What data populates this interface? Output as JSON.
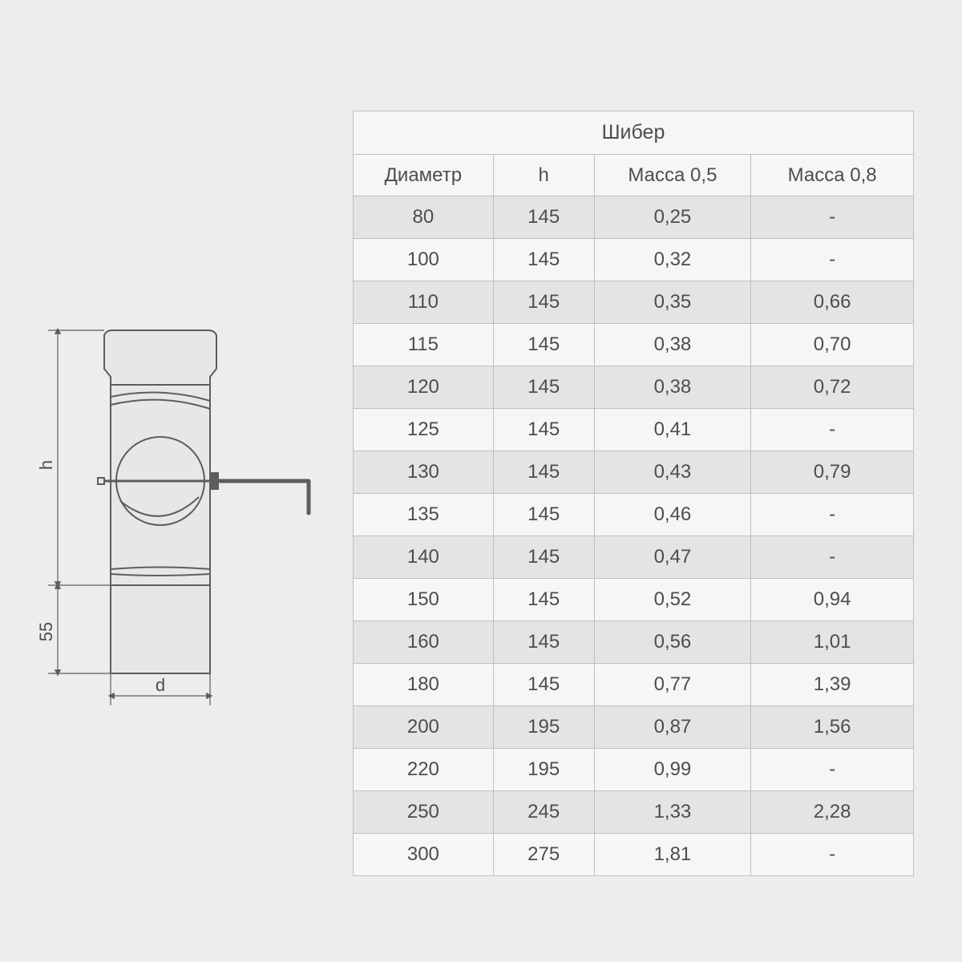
{
  "table": {
    "title": "Шибер",
    "columns": [
      "Диаметр",
      "h",
      "Масса 0,5",
      "Масса 0,8"
    ],
    "rows": [
      [
        "80",
        "145",
        "0,25",
        "-"
      ],
      [
        "100",
        "145",
        "0,32",
        "-"
      ],
      [
        "110",
        "145",
        "0,35",
        "0,66"
      ],
      [
        "115",
        "145",
        "0,38",
        "0,70"
      ],
      [
        "120",
        "145",
        "0,38",
        "0,72"
      ],
      [
        "125",
        "145",
        "0,41",
        "-"
      ],
      [
        "130",
        "145",
        "0,43",
        "0,79"
      ],
      [
        "135",
        "145",
        "0,46",
        "-"
      ],
      [
        "140",
        "145",
        "0,47",
        "-"
      ],
      [
        "150",
        "145",
        "0,52",
        "0,94"
      ],
      [
        "160",
        "145",
        "0,56",
        "1,01"
      ],
      [
        "180",
        "145",
        "0,77",
        "1,39"
      ],
      [
        "200",
        "195",
        "0,87",
        "1,56"
      ],
      [
        "220",
        "195",
        "0,99",
        "-"
      ],
      [
        "250",
        "245",
        "1,33",
        "2,28"
      ],
      [
        "300",
        "275",
        "1,81",
        "-"
      ]
    ],
    "title_fontsize": 25,
    "header_fontsize": 24,
    "cell_fontsize": 24,
    "border_color": "#c1bfbe",
    "text_color": "#4f4d4c",
    "row_colors": {
      "odd": "#e6e4e3",
      "even": "#f6f6f5"
    },
    "header_bg": "#f6f6f5"
  },
  "diagram": {
    "label_h": "h",
    "label_55": "55",
    "label_d": "d",
    "stroke_color": "#5f5d5c",
    "body_fill": "#e9e7e5",
    "dim_fontsize": 22
  }
}
